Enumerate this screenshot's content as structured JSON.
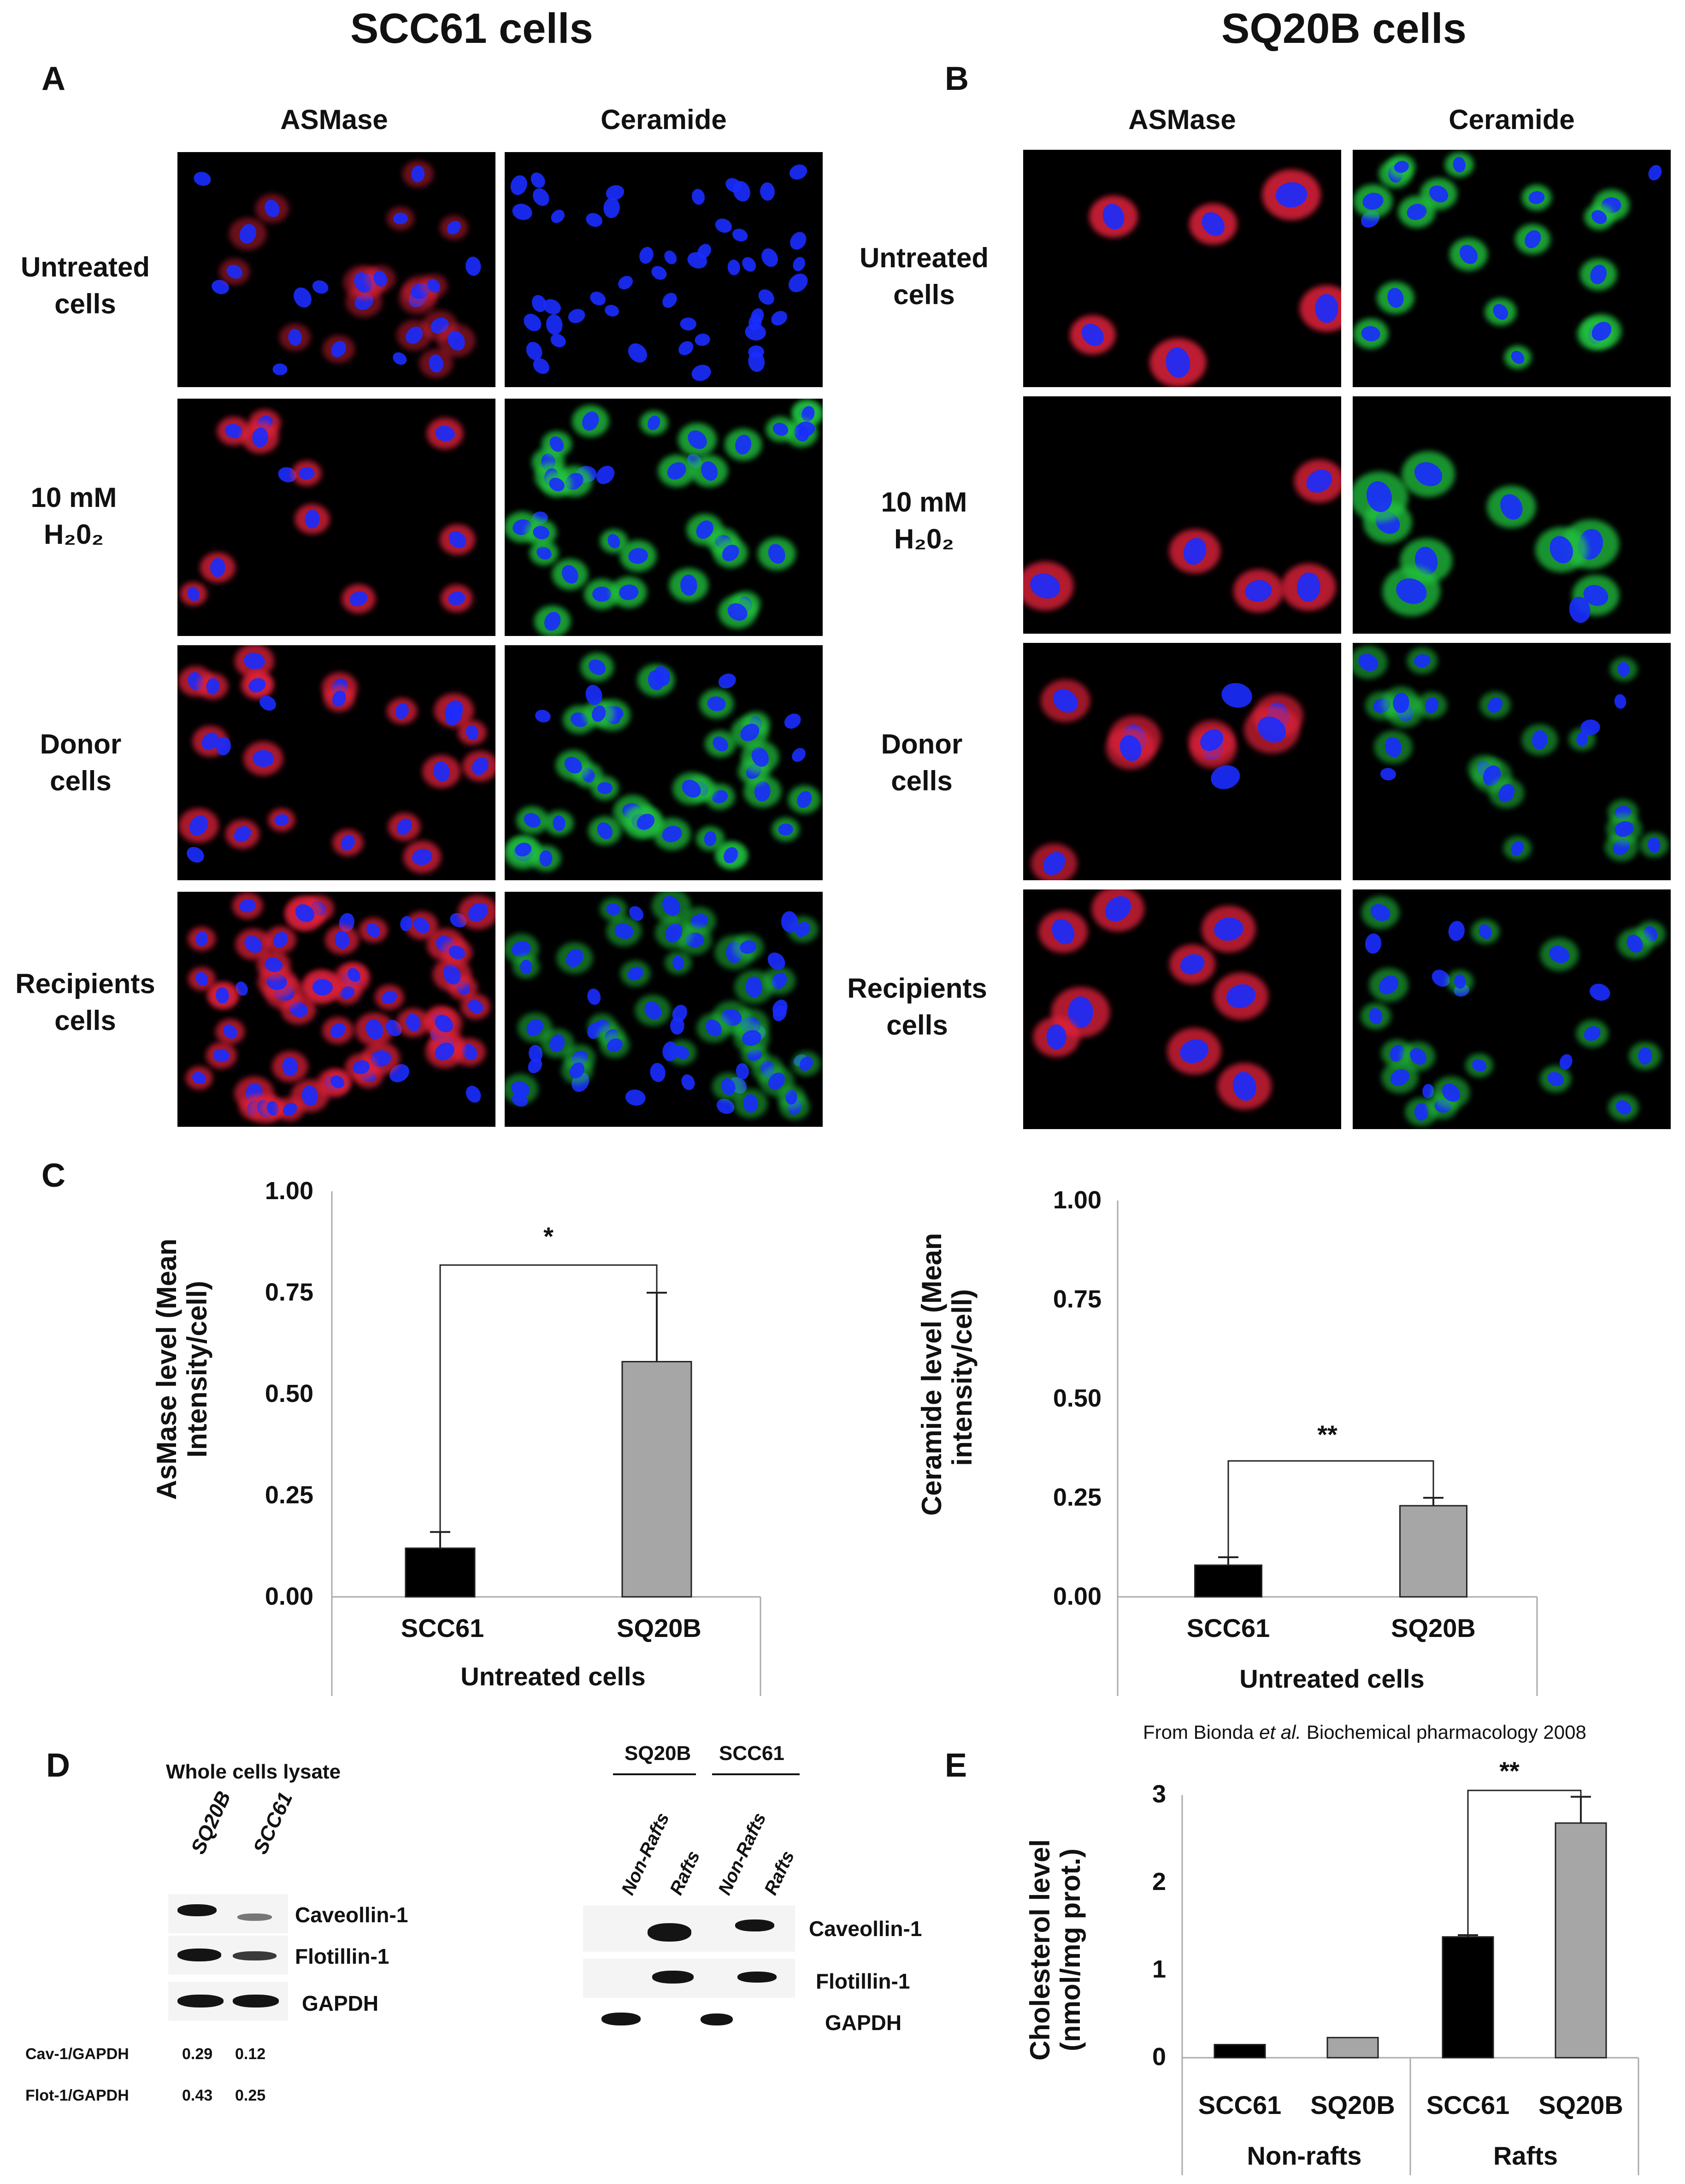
{
  "titles": {
    "left": "SCC61 cells",
    "right": "SQ20B cells"
  },
  "panel_labels": {
    "a": "A",
    "b": "B",
    "c": "C",
    "d": "D",
    "e": "E"
  },
  "micro_columns": {
    "asmase": "ASMase",
    "ceramide": "Ceramide"
  },
  "rows_a": [
    {
      "line1": "Untreated",
      "line2": "cells"
    },
    {
      "line1": "10 mM",
      "line2": "H₂0₂"
    },
    {
      "line1": "Donor",
      "line2": "cells"
    },
    {
      "line1": "Recipients",
      "line2": "cells"
    }
  ],
  "rows_b": [
    {
      "line1": "Untreated",
      "line2": "cells"
    },
    {
      "line1": "10 mM",
      "line2": "H₂0₂"
    },
    {
      "line1": "Donor",
      "line2": "cells"
    },
    {
      "line1": "Recipients",
      "line2": "cells"
    }
  ],
  "colors": {
    "nucleus": "#1a2cff",
    "asmase": "#e0203a",
    "ceramide": "#22c440",
    "bar_black": "#000000",
    "bar_gray": "#a6a6a6"
  },
  "chart_data": [
    {
      "type": "bar",
      "ylabel_line1": "AsMase level (Mean",
      "ylabel_line2": "Intensity/cell)",
      "xlabel": "Untreated cells",
      "categories": [
        "SCC61",
        "SQ20B"
      ],
      "values": [
        0.12,
        0.58
      ],
      "errors": [
        0.04,
        0.17
      ],
      "ylim": [
        0,
        1
      ],
      "yticks": [
        "0.00",
        "0.25",
        "0.50",
        "0.75",
        "1.00"
      ],
      "significance": "*"
    },
    {
      "type": "bar",
      "ylabel_line1": "Ceramide level (Mean",
      "ylabel_line2": "intensity/cell)",
      "xlabel": "Untreated cells",
      "categories": [
        "SCC61",
        "SQ20B"
      ],
      "values": [
        0.08,
        0.23
      ],
      "errors": [
        0.02,
        0.02
      ],
      "ylim": [
        0,
        1
      ],
      "yticks": [
        "0.00",
        "0.25",
        "0.50",
        "0.75",
        "1.00"
      ],
      "significance": "**"
    },
    {
      "type": "bar",
      "source_note_prefix": "From Bionda",
      "source_note_italic": "et al.",
      "source_note_suffix": "Biochemical pharmacology 2008",
      "ylabel_line1": "Cholesterol level",
      "ylabel_line2": "(nmol/mg prot.)",
      "categories": [
        "SCC61",
        "SQ20B",
        "SCC61",
        "SQ20B"
      ],
      "groups": [
        "Non-rafts",
        "Rafts"
      ],
      "values": [
        0.15,
        0.23,
        1.38,
        2.68
      ],
      "errors": [
        0,
        0,
        0.02,
        0.3
      ],
      "ylim": [
        0,
        3
      ],
      "yticks": [
        "0",
        "1",
        "2",
        "3"
      ],
      "significance": "**"
    }
  ],
  "western_whole": {
    "title": "Whole cells lysate",
    "lanes": [
      "SQ20B",
      "SCC61"
    ],
    "bands": [
      "Caveollin-1",
      "Flotillin-1",
      "GAPDH"
    ],
    "ratios": [
      {
        "label": "Cav-1/GAPDH",
        "values": [
          "0.29",
          "0.12"
        ]
      },
      {
        "label": "Flot-1/GAPDH",
        "values": [
          "0.43",
          "0.25"
        ]
      }
    ]
  },
  "western_rafts": {
    "groups": [
      "SQ20B",
      "SCC61"
    ],
    "lanes": [
      "Non-Rafts",
      "Rafts",
      "Non-Rafts",
      "Rafts"
    ],
    "bands": [
      "Caveollin-1",
      "Flotillin-1",
      "GAPDH"
    ]
  }
}
